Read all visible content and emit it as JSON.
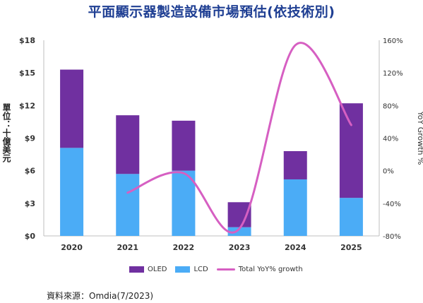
{
  "title": "平面顯示器製造設備市場預估(依技術別)",
  "unit_label": "單位：十億美元",
  "source": "資料來源：Omdia(7/2023)",
  "colors": {
    "oled": "#7030a0",
    "lcd": "#4bacf6",
    "growth": "#d65fc2",
    "axis": "#bfbfbf"
  },
  "chart_data": {
    "type": "bar",
    "stacked": true,
    "categories": [
      "2020",
      "2021",
      "2022",
      "2023",
      "2024",
      "2025"
    ],
    "series": [
      {
        "name": "LCD",
        "values": [
          8.1,
          5.7,
          6.0,
          0.8,
          5.2,
          3.5
        ]
      },
      {
        "name": "OLED",
        "values": [
          7.2,
          5.4,
          4.6,
          2.3,
          2.6,
          8.7
        ]
      }
    ],
    "line_series": {
      "name": "Total YoY% growth",
      "x": [
        "2021",
        "2022",
        "2023",
        "2024",
        "2025"
      ],
      "values": [
        -27,
        -3,
        -71,
        154,
        56
      ]
    },
    "ylim": [
      0,
      18
    ],
    "y_ticks": [
      "$0",
      "$3",
      "$6",
      "$9",
      "$12",
      "$15",
      "$18"
    ],
    "y2lim": [
      -80,
      160
    ],
    "y2_ticks": [
      "-80%",
      "-40%",
      "0%",
      "40%",
      "80%",
      "120%",
      "160%"
    ],
    "y2label": "YoY Growth %",
    "legend": "bottom",
    "grid": false
  }
}
